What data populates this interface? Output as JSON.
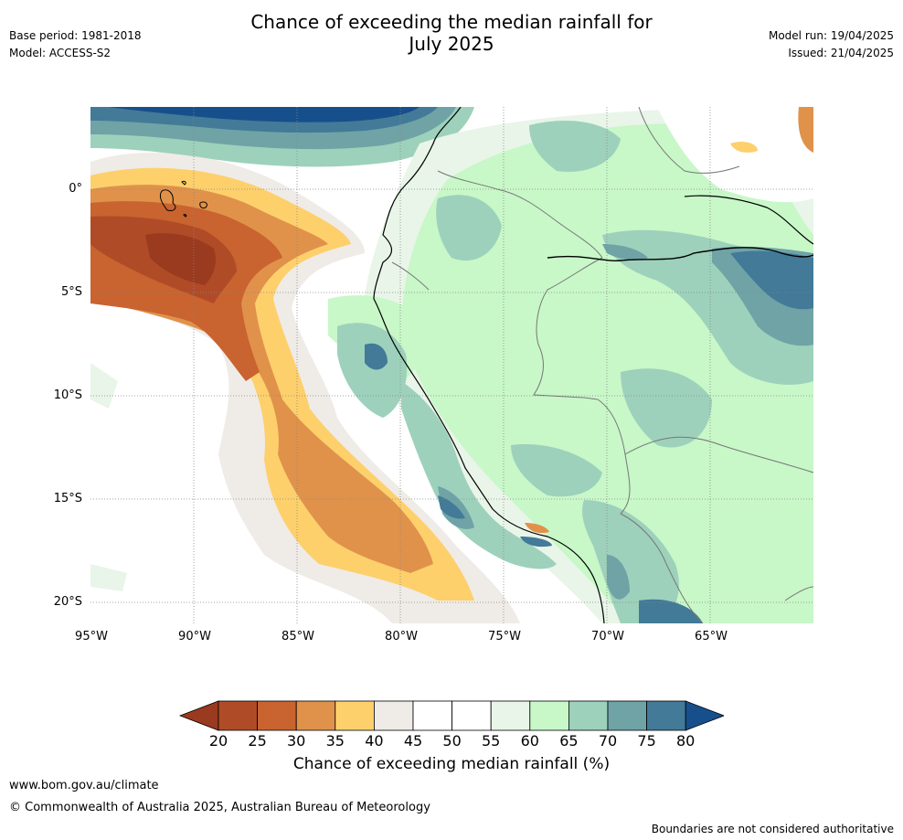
{
  "header": {
    "base_period": "Base period: 1981-2018",
    "model": "Model: ACCESS-S2",
    "model_run": "Model run: 19/04/2025",
    "issued": "Issued: 21/04/2025",
    "title_line1": "Chance of exceeding the median rainfall for",
    "title_line2": "July 2025"
  },
  "map": {
    "lat_ticks": [
      "0°",
      "5°S",
      "10°S",
      "15°S",
      "20°S"
    ],
    "lon_ticks": [
      "95°W",
      "90°W",
      "85°W",
      "80°W",
      "75°W",
      "70°W",
      "65°W"
    ]
  },
  "colorbar": {
    "labels": [
      "20",
      "25",
      "30",
      "35",
      "40",
      "45",
      "50",
      "55",
      "60",
      "65",
      "70",
      "75",
      "80"
    ],
    "colors": [
      "#9a3a1f",
      "#b04b27",
      "#c9632f",
      "#e0924a",
      "#fdd06c",
      "#efebe7",
      "#ffffff",
      "#ffffff",
      "#e8f5e8",
      "#c8f7c8",
      "#9dd1bb",
      "#6fa3a6",
      "#427a98",
      "#174f8c"
    ],
    "title": "Chance of exceeding median rainfall (%)"
  },
  "footer": {
    "url": "www.bom.gov.au/climate",
    "copyright": "© Commonwealth of Australia 2025, Australian Bureau of Meteorology",
    "disclaimer": "Boundaries are not considered authoritative"
  }
}
